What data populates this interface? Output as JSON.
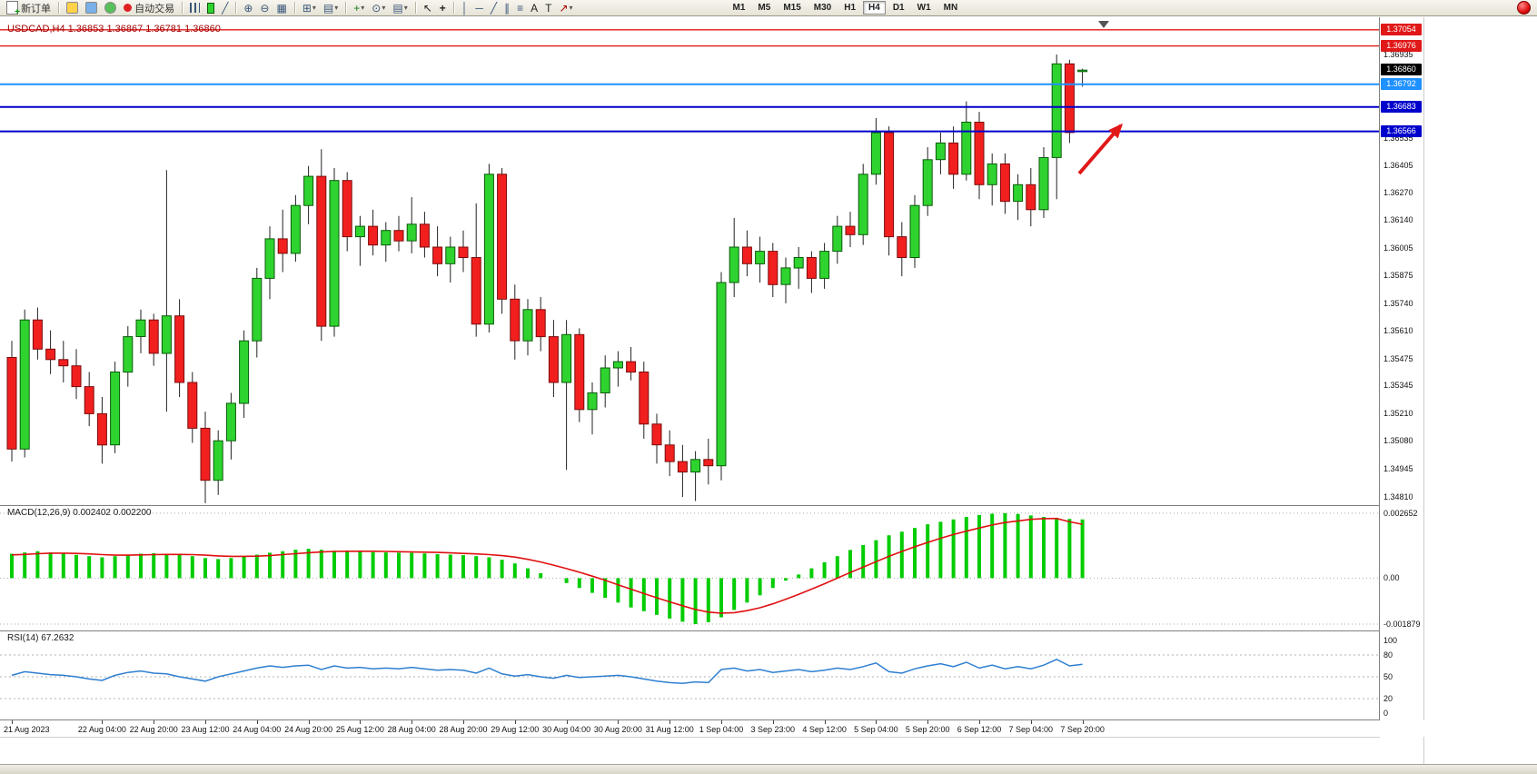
{
  "toolbar": {
    "new_order_label": "新订单",
    "auto_trading_label": "自动交易",
    "timeframes": [
      "M1",
      "M5",
      "M15",
      "M30",
      "H1",
      "H4",
      "D1",
      "W1",
      "MN"
    ],
    "active_timeframe": "H4",
    "icons": [
      "new-order",
      "market-watch",
      "data-window",
      "navigator",
      "auto-trading",
      "bar-chart",
      "candlestick-chart",
      "line-chart",
      "zoom-in",
      "zoom-out",
      "tile-windows",
      "new-chart",
      "profiles",
      "indicators",
      "periods",
      "templates",
      "cursor",
      "crosshair",
      "vertical-line",
      "horizontal-line",
      "trendline",
      "equidistant-channel",
      "fibonacci-retracement",
      "text",
      "text-label",
      "arrows",
      "notification"
    ]
  },
  "chart": {
    "title": "USDCAD,H4 1.36853 1.36867 1.36781 1.36860",
    "symbol": "USDCAD",
    "timeframe": "H4",
    "current_price": "1.36860",
    "price_axis_labels": [
      "1.36935",
      "1.36535",
      "1.36405",
      "1.36270",
      "1.36140",
      "1.36005",
      "1.35875",
      "1.35740",
      "1.35610",
      "1.35475",
      "1.35345",
      "1.35210",
      "1.35080",
      "1.34945",
      "1.34810"
    ],
    "levels": [
      {
        "label": "1.37054",
        "price": 1.37054,
        "color": "#e01818",
        "line": true,
        "width": 1.4
      },
      {
        "label": "1.36976",
        "price": 1.36976,
        "color": "#e01818",
        "line": true,
        "width": 1.4
      },
      {
        "label": "1.36860",
        "price": 1.3686,
        "color": "#000000",
        "line": false,
        "width": 0
      },
      {
        "label": "1.36792",
        "price": 1.36792,
        "color": "#1e90ff",
        "line": true,
        "width": 2
      },
      {
        "label": "1.36683",
        "price": 1.36683,
        "color": "#0000cc",
        "line": true,
        "width": 2
      },
      {
        "label": "1.36566",
        "price": 1.36566,
        "color": "#0000cc",
        "line": true,
        "width": 2
      }
    ]
  },
  "indicators": {
    "macd_label": "MACD(12,26,9) 0.002402 0.002200",
    "rsi_label": "RSI(14) 67.2632"
  },
  "chart_data": [
    {
      "type": "candlestick",
      "title": "USDCAD H4",
      "ylim": [
        1.34771,
        1.37114
      ],
      "x_labels": [
        {
          "idx": 0,
          "t": "21 Aug 2023"
        },
        {
          "idx": 7,
          "t": "22 Aug 04:00"
        },
        {
          "idx": 11,
          "t": "22 Aug 20:00"
        },
        {
          "idx": 15,
          "t": "23 Aug 12:00"
        },
        {
          "idx": 19,
          "t": "24 Aug 04:00"
        },
        {
          "idx": 23,
          "t": "24 Aug 20:00"
        },
        {
          "idx": 27,
          "t": "25 Aug 12:00"
        },
        {
          "idx": 31,
          "t": "28 Aug 04:00"
        },
        {
          "idx": 35,
          "t": "28 Aug 20:00"
        },
        {
          "idx": 39,
          "t": "29 Aug 12:00"
        },
        {
          "idx": 43,
          "t": "30 Aug 04:00"
        },
        {
          "idx": 47,
          "t": "30 Aug 20:00"
        },
        {
          "idx": 51,
          "t": "31 Aug 12:00"
        },
        {
          "idx": 55,
          "t": "1 Sep 04:00"
        },
        {
          "idx": 59,
          "t": "3 Sep 23:00"
        },
        {
          "idx": 63,
          "t": "4 Sep 12:00"
        },
        {
          "idx": 67,
          "t": "5 Sep 04:00"
        },
        {
          "idx": 71,
          "t": "5 Sep 20:00"
        },
        {
          "idx": 75,
          "t": "6 Sep 12:00"
        },
        {
          "idx": 79,
          "t": "7 Sep 04:00"
        },
        {
          "idx": 83,
          "t": "7 Sep 20:00"
        }
      ],
      "ohlc": [
        [
          1.3548,
          1.3556,
          1.3498,
          1.3504
        ],
        [
          1.3504,
          1.3571,
          1.35,
          1.3566
        ],
        [
          1.3566,
          1.3572,
          1.3547,
          1.3552
        ],
        [
          1.3552,
          1.3561,
          1.354,
          1.3547
        ],
        [
          1.3547,
          1.3556,
          1.3536,
          1.3544
        ],
        [
          1.3544,
          1.3552,
          1.3528,
          1.3534
        ],
        [
          1.3534,
          1.3541,
          1.3515,
          1.3521
        ],
        [
          1.3521,
          1.3529,
          1.3497,
          1.3506
        ],
        [
          1.3506,
          1.3546,
          1.3502,
          1.3541
        ],
        [
          1.3541,
          1.3563,
          1.3534,
          1.3558
        ],
        [
          1.3558,
          1.3571,
          1.355,
          1.3566
        ],
        [
          1.3566,
          1.3569,
          1.3544,
          1.355
        ],
        [
          1.355,
          1.3638,
          1.3522,
          1.3568
        ],
        [
          1.3568,
          1.3576,
          1.3529,
          1.3536
        ],
        [
          1.3536,
          1.3541,
          1.3507,
          1.3514
        ],
        [
          1.3514,
          1.3522,
          1.3478,
          1.3489
        ],
        [
          1.3489,
          1.3513,
          1.3482,
          1.3508
        ],
        [
          1.3508,
          1.3531,
          1.3499,
          1.3526
        ],
        [
          1.3526,
          1.3561,
          1.3519,
          1.3556
        ],
        [
          1.3556,
          1.3591,
          1.3548,
          1.3586
        ],
        [
          1.3586,
          1.3611,
          1.3576,
          1.3605
        ],
        [
          1.3605,
          1.3619,
          1.3589,
          1.3598
        ],
        [
          1.3598,
          1.3626,
          1.3594,
          1.3621
        ],
        [
          1.3621,
          1.364,
          1.3612,
          1.3635
        ],
        [
          1.3635,
          1.3648,
          1.3556,
          1.3563
        ],
        [
          1.3563,
          1.3639,
          1.3558,
          1.3633
        ],
        [
          1.3633,
          1.3637,
          1.3599,
          1.3606
        ],
        [
          1.3606,
          1.3616,
          1.3592,
          1.3611
        ],
        [
          1.3611,
          1.3619,
          1.3597,
          1.3602
        ],
        [
          1.3602,
          1.3613,
          1.3594,
          1.3609
        ],
        [
          1.3609,
          1.3616,
          1.3599,
          1.3604
        ],
        [
          1.3604,
          1.3625,
          1.3598,
          1.3612
        ],
        [
          1.3612,
          1.3618,
          1.3596,
          1.3601
        ],
        [
          1.3601,
          1.3611,
          1.3587,
          1.3593
        ],
        [
          1.3593,
          1.3606,
          1.3584,
          1.3601
        ],
        [
          1.3601,
          1.3609,
          1.3589,
          1.3596
        ],
        [
          1.3596,
          1.3622,
          1.3558,
          1.3564
        ],
        [
          1.3564,
          1.3641,
          1.356,
          1.3636
        ],
        [
          1.3636,
          1.3639,
          1.3569,
          1.3576
        ],
        [
          1.3576,
          1.3583,
          1.3547,
          1.3556
        ],
        [
          1.3556,
          1.3576,
          1.3549,
          1.3571
        ],
        [
          1.3571,
          1.3577,
          1.3551,
          1.3558
        ],
        [
          1.3558,
          1.3566,
          1.3529,
          1.3536
        ],
        [
          1.3536,
          1.3566,
          1.3494,
          1.3559
        ],
        [
          1.3559,
          1.3562,
          1.3517,
          1.3523
        ],
        [
          1.3523,
          1.3536,
          1.3511,
          1.3531
        ],
        [
          1.3531,
          1.3549,
          1.3524,
          1.3543
        ],
        [
          1.3543,
          1.3551,
          1.3534,
          1.3546
        ],
        [
          1.3546,
          1.3553,
          1.3537,
          1.3541
        ],
        [
          1.3541,
          1.3546,
          1.3509,
          1.3516
        ],
        [
          1.3516,
          1.3521,
          1.3497,
          1.3506
        ],
        [
          1.3506,
          1.3513,
          1.3491,
          1.3498
        ],
        [
          1.3498,
          1.3506,
          1.3481,
          1.3493
        ],
        [
          1.3493,
          1.3503,
          1.3479,
          1.3499
        ],
        [
          1.3499,
          1.3509,
          1.3487,
          1.3496
        ],
        [
          1.3496,
          1.3589,
          1.3489,
          1.3584
        ],
        [
          1.3584,
          1.3615,
          1.3577,
          1.3601
        ],
        [
          1.3601,
          1.3609,
          1.3587,
          1.3593
        ],
        [
          1.3593,
          1.3606,
          1.3584,
          1.3599
        ],
        [
          1.3599,
          1.3603,
          1.3577,
          1.3583
        ],
        [
          1.3583,
          1.3596,
          1.3574,
          1.3591
        ],
        [
          1.3591,
          1.3601,
          1.3581,
          1.3596
        ],
        [
          1.3596,
          1.3599,
          1.3579,
          1.3586
        ],
        [
          1.3586,
          1.3603,
          1.3581,
          1.3599
        ],
        [
          1.3599,
          1.3616,
          1.3593,
          1.3611
        ],
        [
          1.3611,
          1.3618,
          1.3601,
          1.3607
        ],
        [
          1.3607,
          1.3641,
          1.3602,
          1.3636
        ],
        [
          1.3636,
          1.3663,
          1.3631,
          1.3656
        ],
        [
          1.3656,
          1.3659,
          1.3597,
          1.3606
        ],
        [
          1.3606,
          1.3613,
          1.3587,
          1.3596
        ],
        [
          1.3596,
          1.3626,
          1.3591,
          1.3621
        ],
        [
          1.3621,
          1.3649,
          1.3616,
          1.3643
        ],
        [
          1.3643,
          1.3656,
          1.3636,
          1.3651
        ],
        [
          1.3651,
          1.3659,
          1.3629,
          1.3636
        ],
        [
          1.3636,
          1.3671,
          1.3633,
          1.3661
        ],
        [
          1.3661,
          1.3666,
          1.3624,
          1.3631
        ],
        [
          1.3631,
          1.3646,
          1.3621,
          1.3641
        ],
        [
          1.3641,
          1.3646,
          1.3617,
          1.3623
        ],
        [
          1.3623,
          1.3636,
          1.3614,
          1.3631
        ],
        [
          1.3631,
          1.3639,
          1.3611,
          1.3619
        ],
        [
          1.3619,
          1.3649,
          1.3615,
          1.3644
        ],
        [
          1.3644,
          1.36935,
          1.3624,
          1.3689
        ],
        [
          1.3689,
          1.3691,
          1.3651,
          1.3656
        ],
        [
          1.36853,
          1.36867,
          1.36781,
          1.3686
        ]
      ]
    },
    {
      "type": "bar",
      "name": "MACD",
      "params": "12,26,9",
      "main_value": 0.002402,
      "signal_value": 0.0022,
      "axis": [
        {
          "v": 0.002652,
          "t": "0.002652"
        },
        {
          "v": 0,
          "t": "0.00"
        },
        {
          "v": -0.001879,
          "t": "-0.001879"
        }
      ],
      "values": [
        0.001,
        0.00105,
        0.0011,
        0.00105,
        0.001,
        0.00095,
        0.0009,
        0.00085,
        0.0009,
        0.00095,
        0.001,
        0.00102,
        0.001,
        0.00095,
        0.0009,
        0.00082,
        0.00078,
        0.00082,
        0.00088,
        0.00096,
        0.00104,
        0.0011,
        0.00116,
        0.0012,
        0.00116,
        0.00112,
        0.0011,
        0.00108,
        0.00106,
        0.00105,
        0.00104,
        0.00103,
        0.00101,
        0.00098,
        0.00096,
        0.00094,
        0.0009,
        0.00085,
        0.00075,
        0.0006,
        0.0004,
        0.0002,
        0.0,
        -0.0002,
        -0.0004,
        -0.0006,
        -0.0008,
        -0.001,
        -0.0012,
        -0.00135,
        -0.0015,
        -0.00165,
        -0.00178,
        -0.001879,
        -0.0018,
        -0.0016,
        -0.0013,
        -0.001,
        -0.0007,
        -0.0004,
        -0.0001,
        0.00015,
        0.0004,
        0.00065,
        0.0009,
        0.00115,
        0.00135,
        0.00155,
        0.00175,
        0.0019,
        0.00205,
        0.0022,
        0.0023,
        0.0024,
        0.0025,
        0.00258,
        0.00263,
        0.002652,
        0.00262,
        0.00256,
        0.0025,
        0.00245,
        0.00242,
        0.002402
      ],
      "signal": [
        0.00095,
        0.00097,
        0.001,
        0.00102,
        0.00102,
        0.00101,
        0.00099,
        0.00096,
        0.00094,
        0.00094,
        0.00095,
        0.00096,
        0.00097,
        0.00097,
        0.00096,
        0.00094,
        0.00091,
        0.00089,
        0.00089,
        0.0009,
        0.00092,
        0.00096,
        0.001,
        0.00104,
        0.00107,
        0.00109,
        0.0011,
        0.0011,
        0.0011,
        0.00109,
        0.00108,
        0.00107,
        0.00106,
        0.00105,
        0.00103,
        0.00101,
        0.00099,
        0.00096,
        0.00092,
        0.00086,
        0.00077,
        0.00066,
        0.00053,
        0.00039,
        0.00024,
        8e-05,
        -9e-05,
        -0.00027,
        -0.00045,
        -0.00063,
        -0.0008,
        -0.00097,
        -0.00113,
        -0.00128,
        -0.00139,
        -0.00143,
        -0.00141,
        -0.00133,
        -0.00121,
        -0.00105,
        -0.00086,
        -0.00066,
        -0.00045,
        -0.00023,
        0.0,
        0.00023,
        0.00045,
        0.00067,
        0.00089,
        0.00109,
        0.00128,
        0.00146,
        0.00163,
        0.00178,
        0.00192,
        0.00205,
        0.00217,
        0.00227,
        0.00234,
        0.0024,
        0.00243,
        0.00244,
        0.0023,
        0.0022
      ]
    },
    {
      "type": "line",
      "name": "RSI",
      "period": 14,
      "value": 67.2632,
      "ylim": [
        0,
        100
      ],
      "level_lines": [
        80,
        50,
        20
      ],
      "axis": [
        {
          "v": 100,
          "t": "100"
        },
        {
          "v": 80,
          "t": "80"
        },
        {
          "v": 50,
          "t": "50"
        },
        {
          "v": 20,
          "t": "20"
        },
        {
          "v": 0,
          "t": "0"
        }
      ],
      "values": [
        52,
        57,
        55,
        53,
        52,
        50,
        47,
        45,
        52,
        56,
        58,
        55,
        54,
        50,
        47,
        44,
        50,
        54,
        58,
        62,
        65,
        63,
        65,
        66,
        60,
        65,
        62,
        63,
        61,
        62,
        61,
        63,
        61,
        59,
        60,
        59,
        55,
        62,
        54,
        51,
        53,
        50,
        48,
        52,
        49,
        50,
        51,
        52,
        50,
        47,
        44,
        42,
        41,
        43,
        42,
        60,
        62,
        58,
        60,
        56,
        58,
        60,
        57,
        59,
        62,
        60,
        64,
        69,
        57,
        55,
        61,
        65,
        68,
        64,
        70,
        62,
        66,
        61,
        64,
        61,
        66,
        74,
        65,
        67.2632
      ]
    }
  ]
}
